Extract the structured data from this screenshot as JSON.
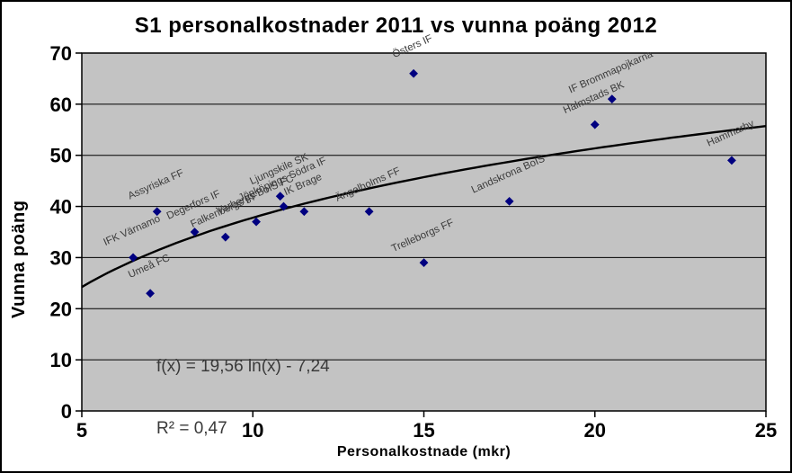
{
  "chart_data": {
    "type": "scatter",
    "title": "S1 personalkostnader 2011 vs vunna poäng 2012",
    "xlabel": "Personalkostnade (mkr)",
    "ylabel": "Vunna poäng",
    "xlim": [
      5,
      25
    ],
    "ylim": [
      0,
      70
    ],
    "x_ticks": [
      5,
      10,
      15,
      20,
      25
    ],
    "y_ticks": [
      0,
      10,
      20,
      30,
      40,
      50,
      60,
      70
    ],
    "grid": "horizontal",
    "legend": "none",
    "plot_bg_color": "#c3c3c3",
    "marker_color": "#000080",
    "label_color": "#3a3a3a",
    "points": [
      {
        "label": "Umeå FC",
        "x": 7.0,
        "y": 23
      },
      {
        "label": "IFK Värnamo",
        "x": 6.5,
        "y": 30
      },
      {
        "label": "Assyriska FF",
        "x": 7.2,
        "y": 39
      },
      {
        "label": "Degerfors IF",
        "x": 8.3,
        "y": 35
      },
      {
        "label": "Falkenbergs FF",
        "x": 9.2,
        "y": 34
      },
      {
        "label": "Varbergs BoIS FC",
        "x": 10.1,
        "y": 37
      },
      {
        "label": "Ljungskile SK",
        "x": 10.8,
        "y": 42
      },
      {
        "label": "Jönköpings Södra IF",
        "x": 10.9,
        "y": 40
      },
      {
        "label": "IK Brage",
        "x": 11.5,
        "y": 39
      },
      {
        "label": "Ängelholms FF",
        "x": 13.4,
        "y": 39
      },
      {
        "label": "Östers IF",
        "x": 14.7,
        "y": 66
      },
      {
        "label": "Trelleborgs FF",
        "x": 15.0,
        "y": 29
      },
      {
        "label": "Landskrona BoIS",
        "x": 17.5,
        "y": 41
      },
      {
        "label": "Halmstads BK",
        "x": 20.0,
        "y": 56
      },
      {
        "label": "IF Brommapojkarna",
        "x": 20.5,
        "y": 61
      },
      {
        "label": "Hammarby",
        "x": 24.0,
        "y": 49
      }
    ],
    "trendline": {
      "type": "logarithmic",
      "a": 19.56,
      "b": -7.24,
      "equation_label": "f(x) = 19,56 ln(x) - 7,24",
      "r2_label": "R² = 0,47",
      "color": "#000000"
    }
  }
}
